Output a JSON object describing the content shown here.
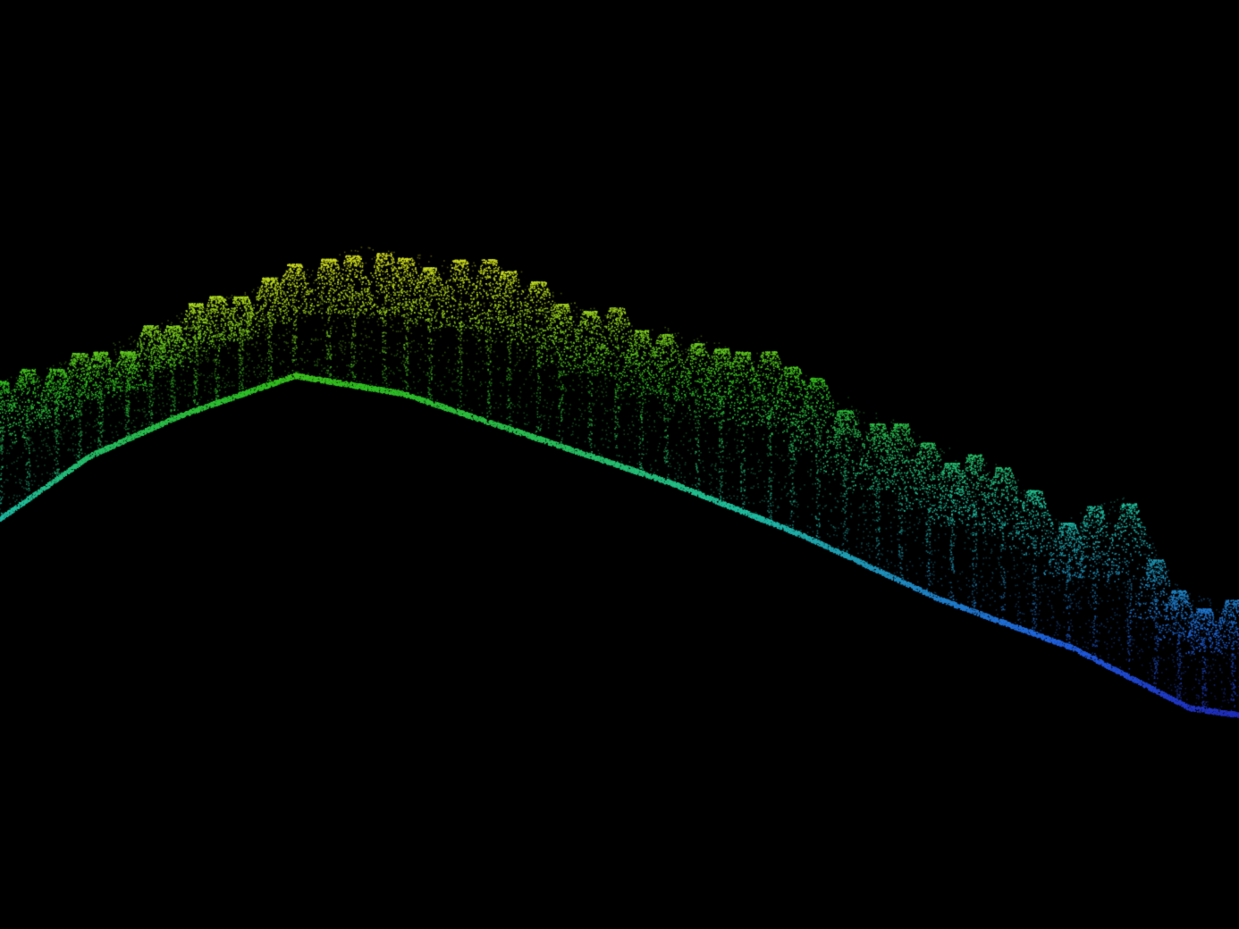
{
  "scene": {
    "subject": "lidar-point-cloud-forested-hill",
    "background_color": "#000000",
    "colormap": [
      "#e0e020",
      "#a8d820",
      "#30c020",
      "#20c0a0",
      "#2060e0",
      "#2030c0"
    ]
  }
}
